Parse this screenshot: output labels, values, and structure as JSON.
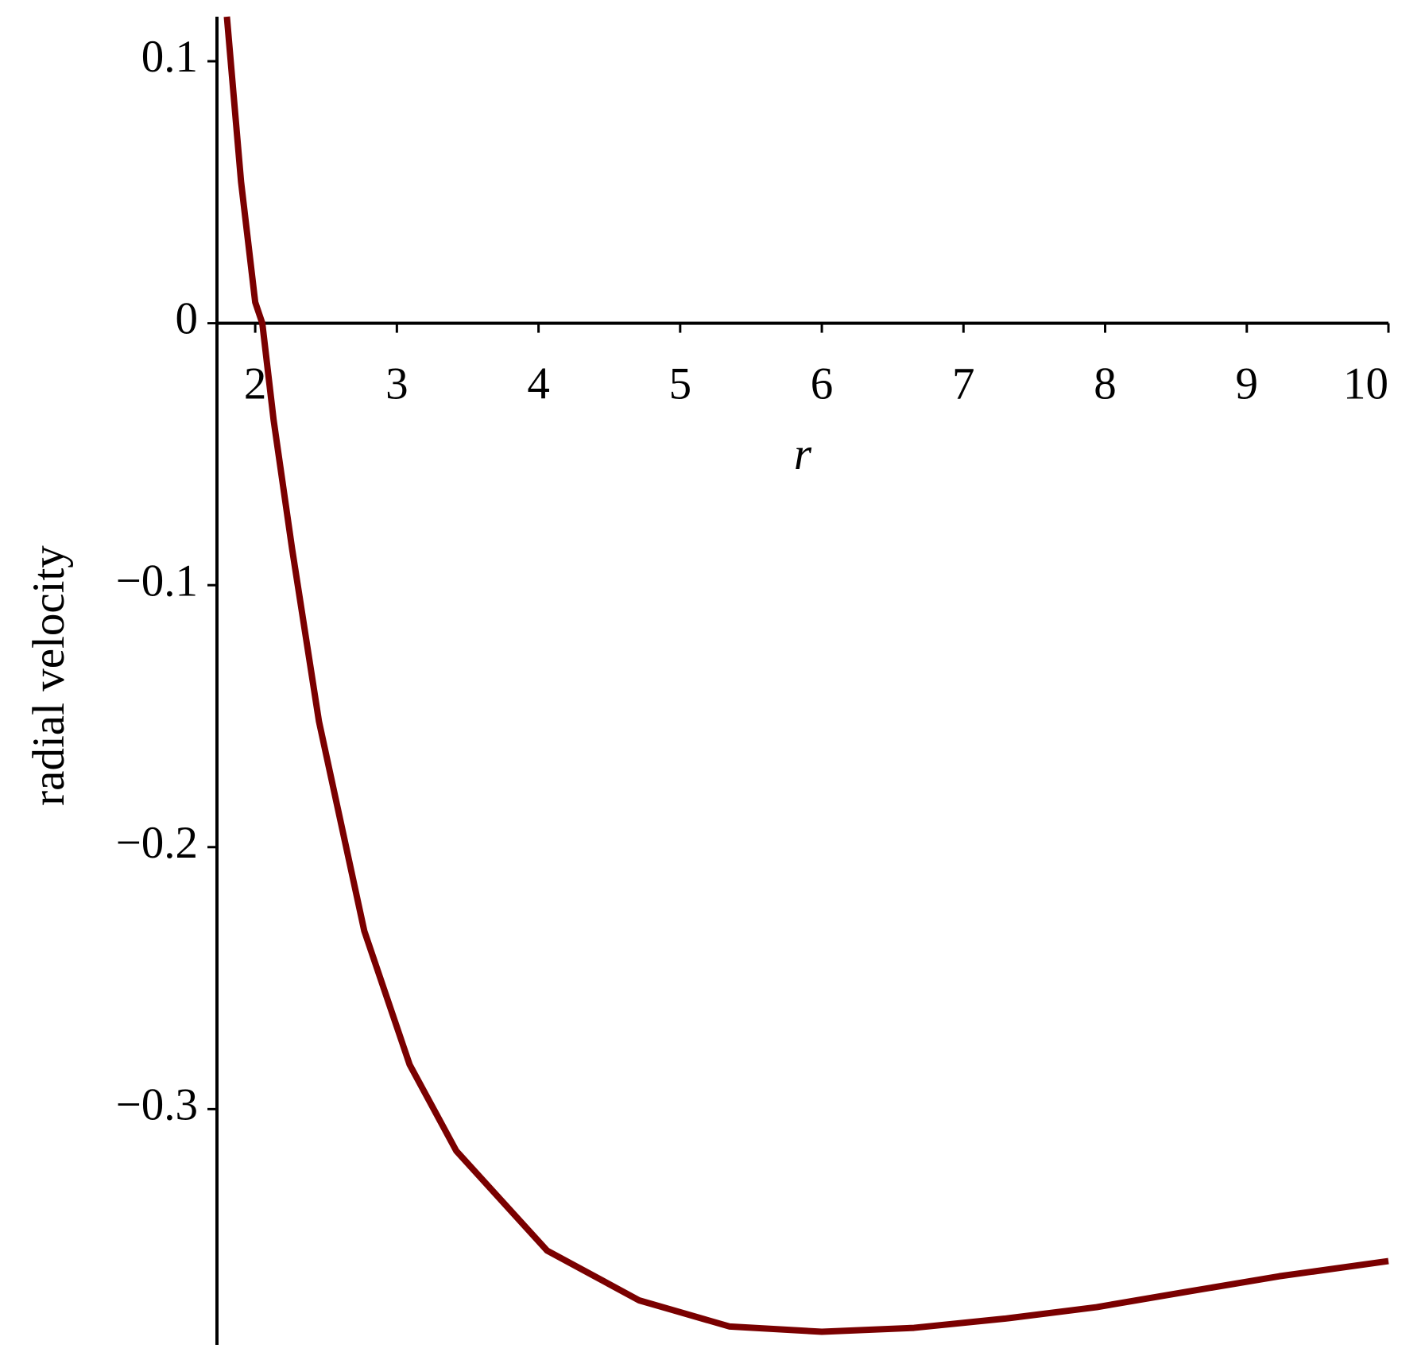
{
  "chart_data": {
    "type": "line",
    "x_label": "r",
    "y_label": "radial velocity",
    "x": [
      1.8,
      1.9,
      2.0,
      2.05,
      2.13,
      2.26,
      2.45,
      2.77,
      3.09,
      3.42,
      4.06,
      4.71,
      5.35,
      6.0,
      6.65,
      7.29,
      7.94,
      8.58,
      9.23,
      10
    ],
    "series": [
      {
        "color": "#7a0000",
        "values": [
          0.117,
          0.054,
          0.008,
          0,
          -0.037,
          -0.086,
          -0.152,
          -0.232,
          -0.283,
          -0.316,
          -0.354,
          -0.373,
          -0.383,
          -0.385,
          -0.3835,
          -0.38,
          -0.3756,
          -0.3697,
          -0.3638,
          -0.358
        ]
      }
    ],
    "xlim": [
      1.73,
      10
    ],
    "ylim": [
      -0.39,
      0.117
    ],
    "xticks": [
      2,
      3,
      4,
      5,
      6,
      7,
      8,
      9,
      10
    ],
    "yticks": [
      {
        "value": -0.3,
        "label": "−0.3"
      },
      {
        "value": -0.2,
        "label": "−0.2"
      },
      {
        "value": -0.1,
        "label": "−0.1"
      },
      0,
      0.1
    ]
  }
}
